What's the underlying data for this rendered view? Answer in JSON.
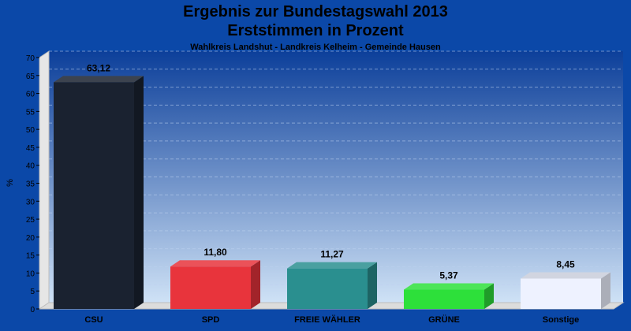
{
  "chart_data": {
    "type": "bar",
    "title": "Ergebnis zur Bundestagswahl 2013",
    "title_line2": "Erststimmen in Prozent",
    "subtitle": "Wahlkreis Landshut - Landkreis Kelheim - Gemeinde Hausen",
    "xlabel": "",
    "ylabel": "%",
    "ylim": [
      0,
      70
    ],
    "yticks": [
      "0",
      "5",
      "10",
      "15",
      "20",
      "25",
      "30",
      "35",
      "40",
      "45",
      "50",
      "55",
      "60",
      "65",
      "70"
    ],
    "ytick_values": [
      0,
      5,
      10,
      15,
      20,
      25,
      30,
      35,
      40,
      45,
      50,
      55,
      60,
      65,
      70
    ],
    "categories": [
      "CSU",
      "SPD",
      "FREIE WÄHLER",
      "GRÜNE",
      "Sonstige"
    ],
    "values": [
      63.12,
      11.8,
      11.27,
      5.37,
      8.45
    ],
    "value_labels": [
      "63,12",
      "11,80",
      "11,27",
      "5,37",
      "8,45"
    ],
    "colors": [
      "#1a2230",
      "#e8343c",
      "#2a8f8f",
      "#2de03a",
      "#eef2ff"
    ],
    "grid": true,
    "legend": "none",
    "background": "#0b48a8"
  }
}
